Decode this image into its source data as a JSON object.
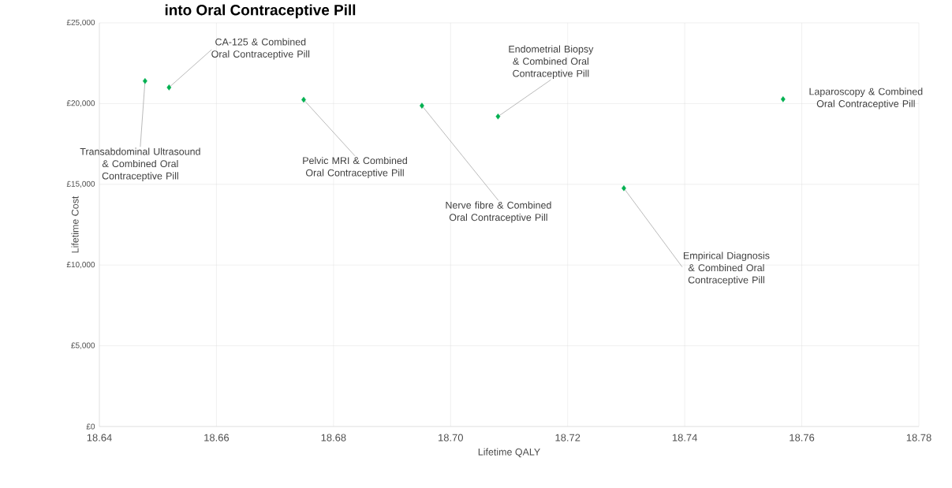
{
  "chart_data": {
    "type": "scatter",
    "title": "into Oral Contraceptive Pill",
    "xlabel": "Lifetime QALY",
    "ylabel": "Lifetime Cost",
    "x": [
      18.6478,
      18.6519,
      18.6749,
      18.6951,
      18.7081,
      18.7296,
      18.7568
    ],
    "series": [
      {
        "color": "#00b050",
        "values": [
          21400,
          21000,
          20240,
          19870,
          19200,
          14760,
          20270
        ]
      }
    ],
    "marker": "diamond",
    "grid": true,
    "xlim": [
      18.64,
      18.78
    ],
    "xticks": [
      {
        "value": 18.64,
        "label": "18.64"
      },
      {
        "value": 18.66,
        "label": "18.66"
      },
      {
        "value": 18.68,
        "label": "18.68"
      },
      {
        "value": 18.7,
        "label": "18.70"
      },
      {
        "value": 18.72,
        "label": "18.72"
      },
      {
        "value": 18.74,
        "label": "18.74"
      },
      {
        "value": 18.76,
        "label": "18.76"
      },
      {
        "value": 18.78,
        "label": "18.78"
      }
    ],
    "ylim": [
      0,
      25000
    ],
    "yticks": [
      {
        "value": 0,
        "label": "£0"
      },
      {
        "value": 5000,
        "label": "£5,000"
      },
      {
        "value": 10000,
        "label": "£10,000"
      },
      {
        "value": 15000,
        "label": "£15,000"
      },
      {
        "value": 20000,
        "label": "£20,000"
      },
      {
        "value": 25000,
        "label": "£25,000"
      }
    ],
    "annotations": [
      {
        "text": "Transabdominal Ultrasound & Combined Oral Contraceptive Pill",
        "x": 18.6478,
        "y": 21400
      },
      {
        "text": "CA-125 & Combined Oral Contraceptive Pill",
        "x": 18.6519,
        "y": 21000
      },
      {
        "text": "Pelvic MRI & Combined Oral Contraceptive Pill",
        "x": 18.6749,
        "y": 20240
      },
      {
        "text": "Nerve fibre & Combined Oral Contraceptive Pill",
        "x": 18.6951,
        "y": 19870
      },
      {
        "text": "Endometrial Biopsy & Combined Oral Contraceptive Pill",
        "x": 18.7081,
        "y": 19200
      },
      {
        "text": "Empirical Diagnosis & Combined Oral Contraceptive Pill",
        "x": 18.7296,
        "y": 14760
      },
      {
        "text": "Laparoscopy & Combined Oral Contraceptive Pill",
        "x": 18.7568,
        "y": 20270
      }
    ]
  }
}
